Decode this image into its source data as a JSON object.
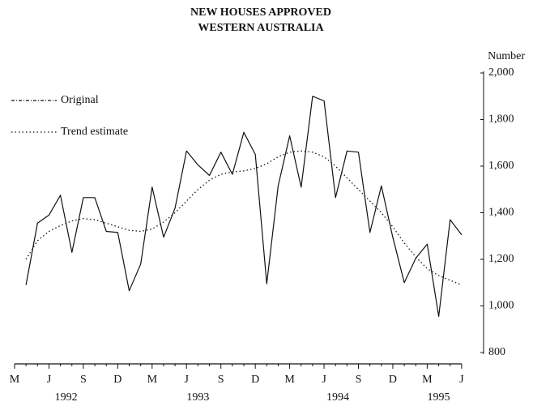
{
  "chart_data": {
    "type": "line",
    "title": "NEW HOUSES APPROVED",
    "subtitle": "WESTERN AUSTRALIA",
    "y_label": "Number",
    "categories": [
      "M",
      null,
      null,
      "J",
      null,
      null,
      "S",
      null,
      null,
      "D",
      null,
      null,
      "M",
      null,
      null,
      "J",
      null,
      null,
      "S",
      null,
      null,
      "D",
      null,
      null,
      "M",
      null,
      null,
      "J",
      null,
      null,
      "S",
      null,
      null,
      "D",
      null,
      null,
      "M",
      null,
      null,
      "J"
    ],
    "year_labels": [
      {
        "value": 4.5,
        "label": "1992"
      },
      {
        "value": 16,
        "label": "1993"
      },
      {
        "value": 28.2,
        "label": "1994"
      },
      {
        "value": 37,
        "label": "1995"
      }
    ],
    "series": [
      {
        "name": "Original",
        "color": "#111111",
        "style": "solid",
        "values": [
          null,
          1090,
          1355,
          1390,
          1475,
          1230,
          1465,
          1465,
          1320,
          1315,
          1065,
          1180,
          1510,
          1295,
          1420,
          1665,
          1605,
          1560,
          1660,
          1565,
          1745,
          1650,
          1095,
          1515,
          1730,
          1510,
          1900,
          1880,
          1465,
          1665,
          1660,
          1315,
          1515,
          1295,
          1100,
          1205,
          1265,
          955,
          1370,
          1305
        ]
      },
      {
        "name": "Trend estimate",
        "color": "#111111",
        "style": "dotted",
        "values": [
          null,
          1200,
          1280,
          1320,
          1345,
          1365,
          1375,
          1370,
          1355,
          1340,
          1325,
          1320,
          1330,
          1360,
          1400,
          1450,
          1500,
          1540,
          1565,
          1575,
          1580,
          1590,
          1610,
          1640,
          1660,
          1665,
          1660,
          1640,
          1600,
          1550,
          1500,
          1450,
          1400,
          1340,
          1270,
          1210,
          1160,
          1130,
          1110,
          1090
        ]
      }
    ],
    "ylim": [
      800,
      2000
    ],
    "yticks": [
      800,
      {
        "value": 1000,
        "label": "1,000"
      },
      {
        "value": 1200,
        "label": "1,200"
      },
      {
        "value": 1400,
        "label": "1,400"
      },
      {
        "value": 1600,
        "label": "1,600"
      },
      {
        "value": 1800,
        "label": "1,800"
      },
      {
        "value": 2000,
        "label": "2,000"
      }
    ],
    "y_axis_side": "right",
    "legend": "top-left"
  }
}
